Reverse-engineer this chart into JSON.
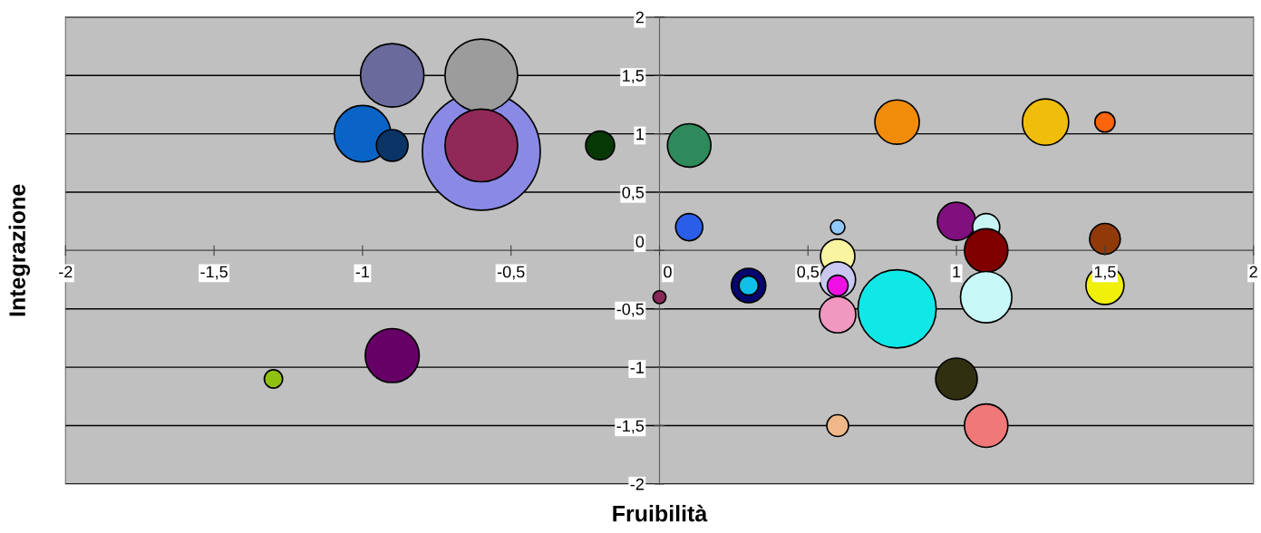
{
  "chart_data": {
    "type": "bubble",
    "xlabel": "Fruibilità",
    "ylabel": "Integrazione",
    "xlim": [
      -2,
      2
    ],
    "ylim": [
      -2,
      2
    ],
    "xticks": [
      -2,
      {
        "value": -1.5,
        "label": "-1,5"
      },
      -1,
      {
        "value": -0.5,
        "label": "-0,5"
      },
      0,
      {
        "value": 0.5,
        "label": "0,5"
      },
      1,
      {
        "value": 1.5,
        "label": "1,5"
      },
      2
    ],
    "yticks": [
      -2,
      {
        "value": -1.5,
        "label": "-1,5"
      },
      -1,
      {
        "value": -0.5,
        "label": "-0,5"
      },
      0,
      {
        "value": 0.5,
        "label": "0,5"
      },
      1,
      {
        "value": 1.5,
        "label": "1,5"
      },
      2
    ],
    "grid": "y",
    "legend": false,
    "series": [
      {
        "x": [
          -0.6,
          -0.6,
          -0.6,
          -0.9,
          -1.0,
          -0.9,
          -0.2,
          0.1,
          0.1,
          0.8,
          1.3,
          1.5,
          1.0,
          1.1,
          1.1,
          1.5,
          0.6,
          0.6,
          0.6,
          0.6,
          0.6,
          0.8,
          1.1,
          1.5,
          0.3,
          0.3,
          0.0,
          1.0,
          1.1,
          0.6,
          -0.9,
          -1.3
        ],
        "values": [
          0.85,
          1.5,
          0.9,
          1.5,
          1.0,
          0.9,
          0.9,
          0.9,
          0.2,
          1.1,
          1.1,
          1.1,
          0.25,
          0.2,
          0.0,
          0.1,
          0.2,
          -0.05,
          -0.25,
          -0.3,
          -0.55,
          -0.5,
          -0.4,
          -0.3,
          -0.3,
          -0.3,
          -0.4,
          -1.1,
          -1.5,
          -1.5,
          -0.9,
          -1.1
        ],
        "sizes": [
          1,
          0.38,
          0.38,
          0.29,
          0.23,
          0.072,
          0.06,
          0.136,
          0.053,
          0.142,
          0.154,
          0.029,
          0.104,
          0.053,
          0.136,
          0.068,
          0.015,
          0.085,
          0.092,
          0.031,
          0.095,
          0.44,
          0.19,
          0.104,
          0.085,
          0.027,
          0.012,
          0.125,
          0.136,
          0.034,
          0.21,
          0.024
        ],
        "colors": [
          "#8a8ae6",
          "#9c9c9c",
          "#902858",
          "#6a6a9c",
          "#0a64c8",
          "#0a3466",
          "#063806",
          "#2e8a5a",
          "#2a5ee8",
          "#f08c0a",
          "#f0be0a",
          "#fa640a",
          "#80107e",
          "#c8f4f4",
          "#800000",
          "#903a0a",
          "#90c8f8",
          "#f8f4a0",
          "#c8c8f0",
          "#f010e6",
          "#f098c0",
          "#10e8e8",
          "#c8f8f8",
          "#f0f00a",
          "#06066e",
          "#10c0ea",
          "#882858",
          "#303010",
          "#f07878",
          "#f0b888",
          "#660066",
          "#90c010"
        ]
      }
    ]
  }
}
